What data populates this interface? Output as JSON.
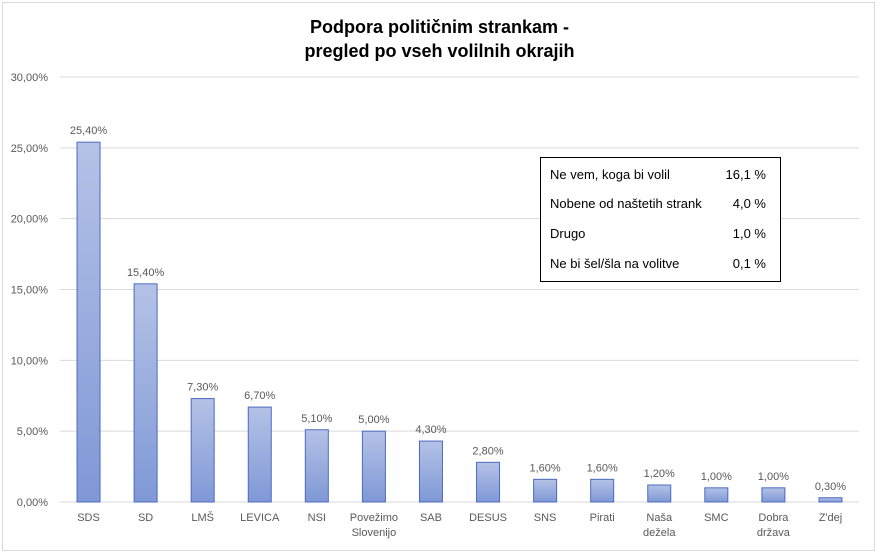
{
  "chart_data": {
    "type": "bar",
    "title_line1": "Podpora političnim strankam -",
    "title_line2": "pregled po vseh volilnih okrajih",
    "categories": [
      [
        "SDS"
      ],
      [
        "SD"
      ],
      [
        "LMŠ"
      ],
      [
        "LEVICA"
      ],
      [
        "NSI"
      ],
      [
        "Povežimo",
        "Slovenijo"
      ],
      [
        "SAB"
      ],
      [
        "DESUS"
      ],
      [
        "SNS"
      ],
      [
        "Pirati"
      ],
      [
        "Naša",
        "dežela"
      ],
      [
        "SMC"
      ],
      [
        "Dobra",
        "država"
      ],
      [
        "Z'dej"
      ]
    ],
    "values": [
      25.4,
      15.4,
      7.3,
      6.7,
      5.1,
      5.0,
      4.3,
      2.8,
      1.6,
      1.6,
      1.2,
      1.0,
      1.0,
      0.3
    ],
    "value_labels": [
      "25,40%",
      "15,40%",
      "7,30%",
      "6,70%",
      "5,10%",
      "5,00%",
      "4,30%",
      "2,80%",
      "1,60%",
      "1,60%",
      "1,20%",
      "1,00%",
      "1,00%",
      "0,30%"
    ],
    "ylim": [
      0,
      30
    ],
    "yticks": [
      0,
      5,
      10,
      15,
      20,
      25,
      30
    ],
    "ytick_labels": [
      "0,00%",
      "5,00%",
      "10,00%",
      "15,00%",
      "20,00%",
      "25,00%",
      "30,00%"
    ],
    "grid": true,
    "bar_color_top": "#b4c2e6",
    "bar_color_bottom": "#7f98d6",
    "bar_border": "#4a6bbf"
  },
  "info_box": [
    {
      "label": "Ne vem, koga bi volil",
      "value": "16,1 %"
    },
    {
      "label": "Nobene od naštetih strank",
      "value": "4,0 %"
    },
    {
      "label": "Drugo",
      "value": "1,0 %"
    },
    {
      "label": "Ne bi šel/šla na volitve",
      "value": "0,1 %"
    }
  ]
}
